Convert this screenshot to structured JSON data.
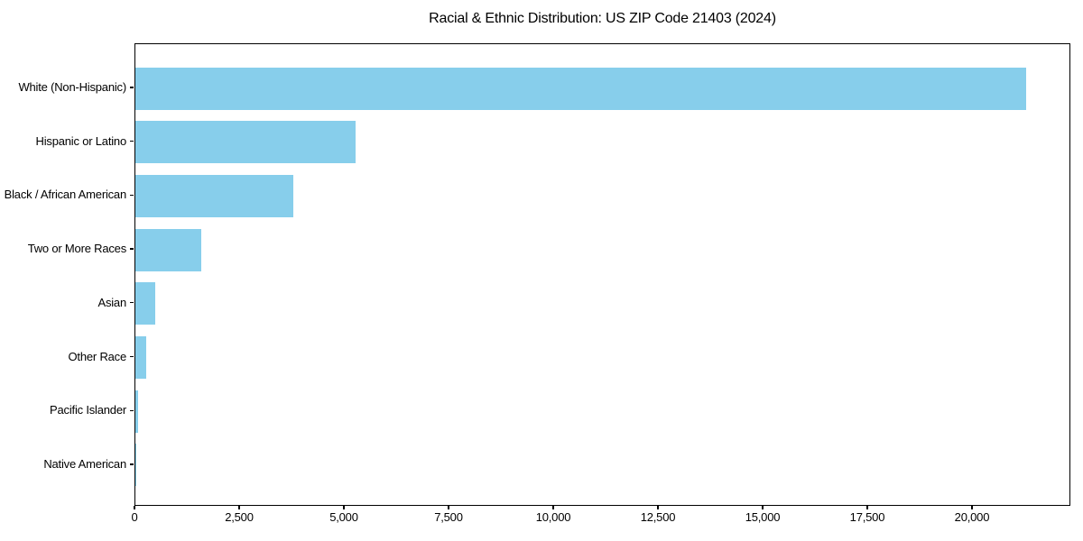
{
  "figure": {
    "background": "#ffffff"
  },
  "chart_data": {
    "type": "bar",
    "orientation": "horizontal",
    "title": "Racial & Ethnic Distribution: US ZIP Code 21403 (2024)",
    "categories": [
      "White (Non-Hispanic)",
      "Hispanic or Latino",
      "Black / African American",
      "Two or More Races",
      "Asian",
      "Other Race",
      "Pacific Islander",
      "Native American"
    ],
    "values": [
      21270,
      5260,
      3770,
      1570,
      470,
      250,
      70,
      10
    ],
    "xlabel": "",
    "ylabel": "",
    "xlim": [
      0,
      22350
    ],
    "xticks": [
      0,
      2500,
      5000,
      7500,
      10000,
      12500,
      15000,
      17500,
      20000
    ],
    "xtick_labels": [
      "0",
      "2,500",
      "5,000",
      "7,500",
      "10,000",
      "12,500",
      "15,000",
      "17,500",
      "20,000"
    ],
    "bar_color": "#87CEEB",
    "spine_color": "#000000",
    "text_color": "#000000",
    "grid": false,
    "legend": "none"
  }
}
